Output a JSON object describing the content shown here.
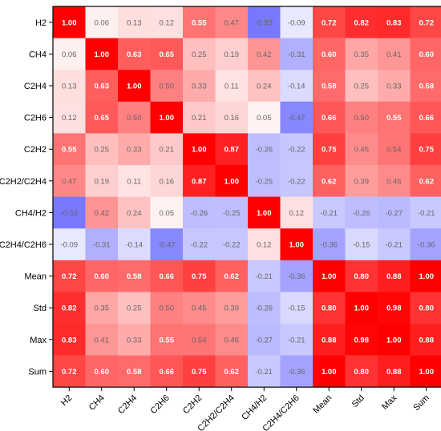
{
  "chart_data": {
    "type": "heatmap",
    "labels": [
      "H2",
      "CH4",
      "C2H4",
      "C2H6",
      "C2H2",
      "C2H2/C2H4",
      "CH4/H2",
      "C2H4/C2H6",
      "Mean",
      "Std",
      "Max",
      "Sum"
    ],
    "values": [
      [
        1.0,
        0.06,
        0.13,
        0.12,
        0.55,
        0.47,
        -0.53,
        -0.09,
        0.72,
        0.82,
        0.83,
        0.72
      ],
      [
        0.06,
        1.0,
        0.63,
        0.65,
        0.25,
        0.19,
        0.42,
        -0.31,
        0.6,
        0.35,
        0.41,
        0.6
      ],
      [
        0.13,
        0.63,
        1.0,
        0.5,
        0.33,
        0.11,
        0.24,
        -0.14,
        0.58,
        0.25,
        0.33,
        0.58
      ],
      [
        0.12,
        0.65,
        0.5,
        1.0,
        0.21,
        0.16,
        0.05,
        -0.47,
        0.66,
        0.5,
        0.55,
        0.66
      ],
      [
        0.55,
        0.25,
        0.33,
        0.21,
        1.0,
        0.87,
        -0.26,
        -0.22,
        0.75,
        0.45,
        0.54,
        0.75
      ],
      [
        0.47,
        0.19,
        0.11,
        0.16,
        0.87,
        1.0,
        -0.25,
        -0.22,
        0.62,
        0.39,
        0.46,
        0.62
      ],
      [
        -0.53,
        0.42,
        0.24,
        0.05,
        -0.26,
        -0.25,
        1.0,
        0.12,
        -0.21,
        -0.26,
        -0.27,
        -0.21
      ],
      [
        -0.09,
        -0.31,
        -0.14,
        -0.47,
        -0.22,
        -0.22,
        0.12,
        1.0,
        -0.36,
        -0.15,
        -0.21,
        -0.36
      ],
      [
        0.72,
        0.6,
        0.58,
        0.66,
        0.75,
        0.62,
        -0.21,
        -0.36,
        1.0,
        0.8,
        0.88,
        1.0
      ],
      [
        0.82,
        0.35,
        0.25,
        0.5,
        0.45,
        0.39,
        -0.26,
        -0.15,
        0.8,
        1.0,
        0.98,
        0.8
      ],
      [
        0.83,
        0.41,
        0.33,
        0.55,
        0.54,
        0.46,
        -0.27,
        -0.21,
        0.88,
        0.98,
        1.0,
        0.88
      ],
      [
        0.72,
        0.6,
        0.58,
        0.66,
        0.75,
        0.62,
        -0.21,
        -0.36,
        1.0,
        0.8,
        0.88,
        1.0
      ]
    ],
    "value_range": [
      -1,
      1
    ],
    "colormap": {
      "negative": "#0000ff",
      "zero": "#ffffff",
      "positive": "#ff0000"
    },
    "text_colors": {
      "strong": "#ffffff",
      "weak": "#666666"
    },
    "frame_color": "#000000"
  }
}
